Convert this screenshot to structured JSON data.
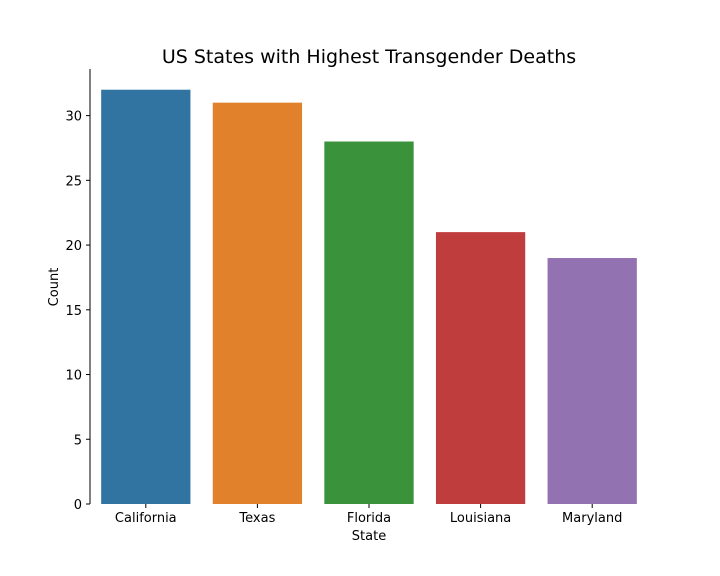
{
  "chart_data": {
    "type": "bar",
    "title": "US States with Highest Transgender Deaths",
    "xlabel": "State",
    "ylabel": "Count",
    "categories": [
      "California",
      "Texas",
      "Florida",
      "Louisiana",
      "Maryland"
    ],
    "values": [
      32,
      31,
      28,
      21,
      19
    ],
    "colors": [
      "#3274a1",
      "#e1812c",
      "#3a923a",
      "#c03d3e",
      "#9372b2"
    ],
    "yticks": [
      0,
      5,
      10,
      15,
      20,
      25,
      30
    ],
    "ylim": [
      0,
      33.6
    ],
    "grid": false,
    "legend": "none"
  }
}
